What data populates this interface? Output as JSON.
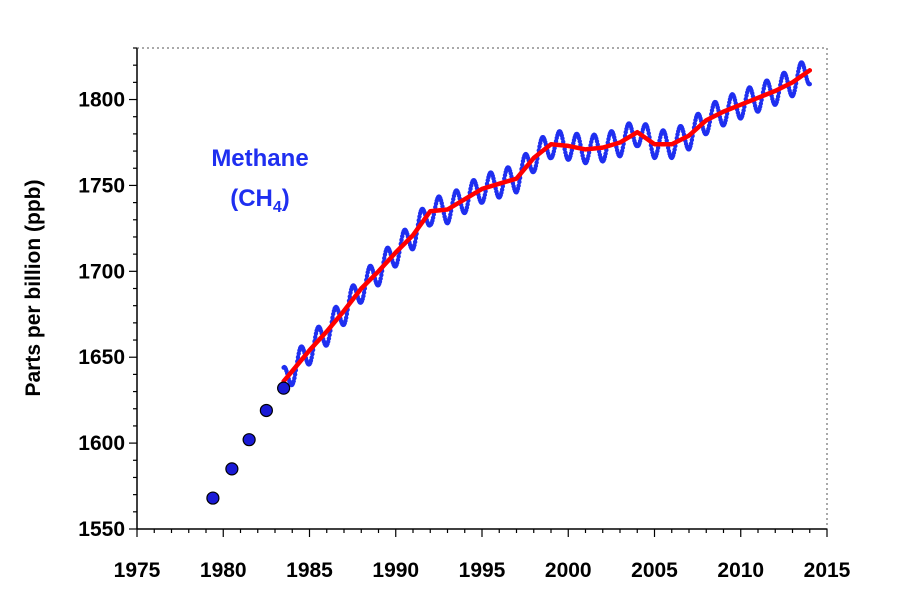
{
  "chart_data": {
    "type": "line",
    "title": "",
    "xlabel": "",
    "ylabel": "Parts per billion (ppb)",
    "xlim": [
      1975,
      2015
    ],
    "ylim": [
      1550,
      1830
    ],
    "x_ticks": [
      1975,
      1980,
      1985,
      1990,
      1995,
      2000,
      2005,
      2010,
      2015
    ],
    "y_ticks": [
      1550,
      1600,
      1650,
      1700,
      1750,
      1800
    ],
    "grid": false,
    "annotation": {
      "line1": "Methane",
      "line2_main": "(CH",
      "line2_sub": "4",
      "line2_end": ")"
    },
    "colors": {
      "monthly": "#1f2ff0",
      "trend": "#ff0000",
      "early_points": "#1a1ad6",
      "axis": "#000000"
    },
    "series": [
      {
        "type": "scatter",
        "x": [
          1979.4,
          1980.5,
          1981.5,
          1982.5,
          1983.5
        ],
        "y": [
          1568,
          1585,
          1602,
          1619,
          1632
        ]
      },
      {
        "type": "line",
        "x": [
          1983.5,
          1984,
          1985,
          1986,
          1987,
          1988,
          1989,
          1990,
          1991,
          1992,
          1993,
          1994,
          1995,
          1996,
          1997,
          1998,
          1999,
          2000,
          2001,
          2002,
          2003,
          2004,
          2005,
          2006,
          2007,
          2008,
          2009,
          2010,
          2011,
          2012,
          2013,
          2014
        ],
        "y": [
          1636,
          1642,
          1654,
          1665,
          1677,
          1690,
          1700,
          1711,
          1721,
          1735,
          1736,
          1742,
          1748,
          1751,
          1754,
          1766,
          1774,
          1773,
          1771,
          1772,
          1775,
          1781,
          1774,
          1774,
          1779,
          1788,
          1793,
          1797,
          1801,
          1805,
          1810,
          1817
        ]
      },
      {
        "type": "line",
        "seasonal_amplitude": 8,
        "x_range": [
          1983.5,
          2014.0
        ]
      }
    ]
  }
}
